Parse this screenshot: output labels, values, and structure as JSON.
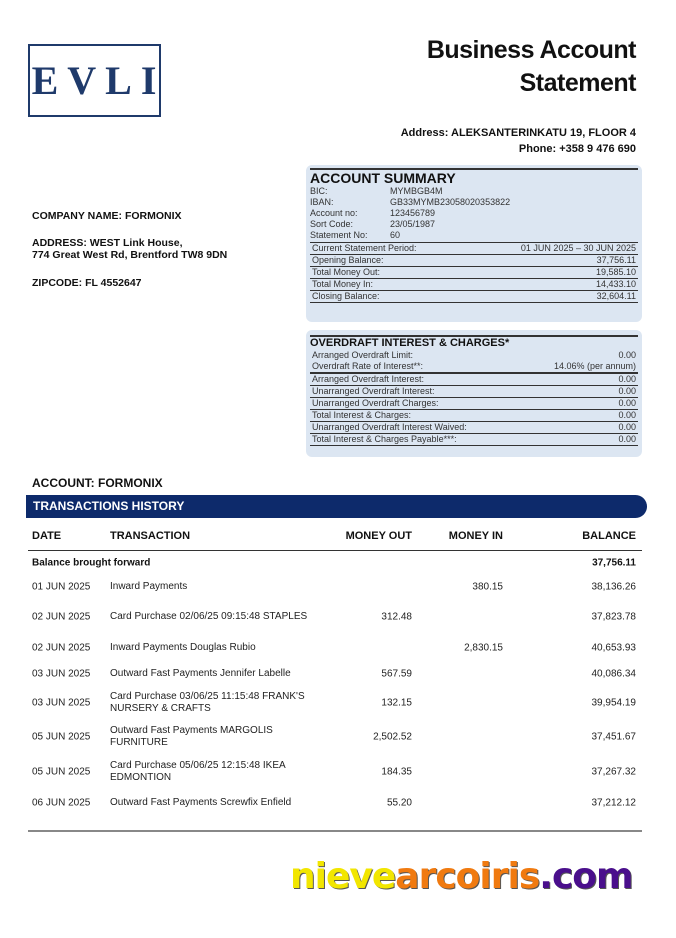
{
  "logo": {
    "text": "EVLI"
  },
  "header": {
    "title_line1": "Business Account",
    "title_line2": "Statement",
    "address": "Address: ALEKSANTERINKATU 19, FLOOR 4",
    "phone": "Phone: +358 9 476 690"
  },
  "company": {
    "name": "COMPANY NAME: FORMONIX",
    "address1": "ADDRESS: WEST Link House,",
    "address2": "774 Great West Rd, Brentford TW8 9DN",
    "zipcode": "ZIPCODE: FL 4552647"
  },
  "summary": {
    "title": "ACCOUNT SUMMARY",
    "details": [
      {
        "k": "BIC:",
        "v": "MYMBGB4M"
      },
      {
        "k": "IBAN:",
        "v": "GB33MYMB23058020353822"
      },
      {
        "k": "Account no:",
        "v": "123456789"
      },
      {
        "k": "Sort Code:",
        "v": "23/05/1987"
      },
      {
        "k": "Statement No:",
        "v": "60"
      }
    ],
    "lines": [
      {
        "k": "Current Statement Period:",
        "v": "01 JUN 2025 – 30 JUN 2025"
      },
      {
        "k": "Opening Balance:",
        "v": "37,756.11"
      },
      {
        "k": "Total Money Out:",
        "v": "19,585.10"
      },
      {
        "k": "Total Money In:",
        "v": "14,433.10"
      },
      {
        "k": "Closing Balance:",
        "v": "32,604.11"
      }
    ]
  },
  "overdraft": {
    "title": "OVERDRAFT INTEREST & CHARGES*",
    "plain": [
      {
        "k": "Arranged Overdraft Limit:",
        "v": "0.00"
      },
      {
        "k": "Overdraft Rate of Interest**:",
        "v": "14.06% (per annum)"
      }
    ],
    "lines": [
      {
        "k": "Arranged Overdraft Interest:",
        "v": "0.00"
      },
      {
        "k": "Unarranged Overdraft Interest:",
        "v": "0.00"
      },
      {
        "k": "Unarranged Overdraft Charges:",
        "v": "0.00"
      },
      {
        "k": "Total Interest & Charges:",
        "v": "0.00"
      },
      {
        "k": "Unarranged Overdraft Interest Waived:",
        "v": "0.00"
      },
      {
        "k": "Total Interest & Charges Payable***:",
        "v": "0.00"
      }
    ]
  },
  "account_label": "ACCOUNT: FORMONIX",
  "transactions": {
    "title": "TRANSACTIONS HISTORY",
    "columns": {
      "date": "DATE",
      "desc": "TRANSACTION",
      "out": "MONEY OUT",
      "in": "MONEY IN",
      "bal": "BALANCE"
    },
    "brought_forward": {
      "label": "Balance brought forward",
      "balance": "37,756.11"
    },
    "rows": [
      {
        "date": "01 JUN 2025",
        "desc": "Inward Payments",
        "out": "",
        "in": "380.15",
        "bal": "38,136.26"
      },
      {
        "date": "02 JUN 2025",
        "desc": "Card Purchase 02/06/25 09:15:48 STAPLES",
        "out": "312.48",
        "in": "",
        "bal": "37,823.78"
      },
      {
        "date": "02 JUN 2025",
        "desc": "Inward Payments Douglas Rubio",
        "out": "",
        "in": "2,830.15",
        "bal": "40,653.93"
      },
      {
        "date": "03 JUN 2025",
        "desc": "Outward Fast Payments Jennifer Labelle",
        "out": "567.59",
        "in": "",
        "bal": "40,086.34"
      },
      {
        "date": "03 JUN 2025",
        "desc": "Card Purchase 03/06/25 11:15:48 FRANK'S NURSERY & CRAFTS",
        "out": "132.15",
        "in": "",
        "bal": "39,954.19"
      },
      {
        "date": "05 JUN 2025",
        "desc": "Outward Fast Payments MARGOLIS FURNITURE",
        "out": "2,502.52",
        "in": "",
        "bal": "37,451.67"
      },
      {
        "date": "05 JUN 2025",
        "desc": "Card Purchase 05/06/25 12:15:48 IKEA EDMONTION",
        "out": "184.35",
        "in": "",
        "bal": "37,267.32"
      },
      {
        "date": "06 JUN 2025",
        "desc": "Outward Fast Payments Screwfix Enfield",
        "out": "55.20",
        "in": "",
        "bal": "37,212.12"
      }
    ]
  },
  "watermark": {
    "part1": "nieve",
    "part2": "arcoiris",
    "part3": ".com",
    "colors": [
      "#f2e600",
      "#f07a10",
      "#4a0f8c"
    ]
  }
}
